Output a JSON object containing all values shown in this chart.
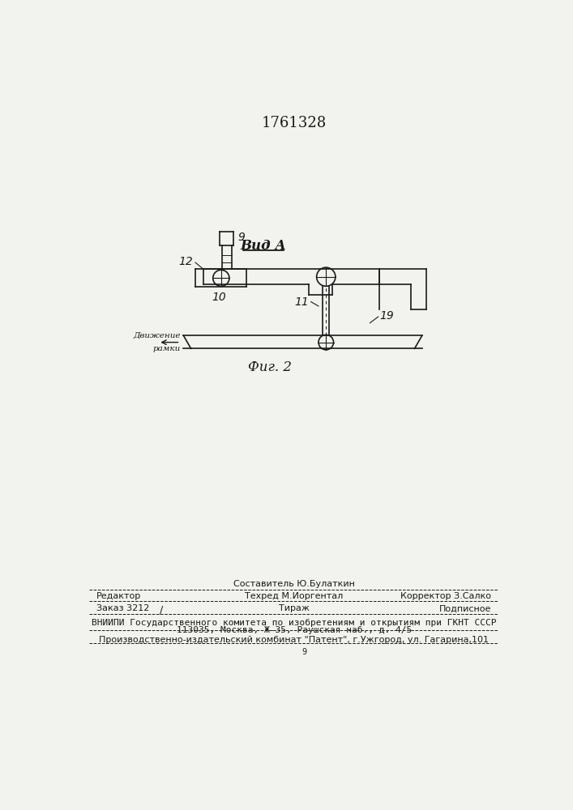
{
  "bg_color": "#f2f2ee",
  "title_text": "1761328",
  "line_color": "#1a1a1a",
  "lw": 1.2,
  "footer": {
    "line1_center": "Составитель Ю.Булаткин",
    "line2_left": "Редактор",
    "line2_center": "Техред М.Иоргентал",
    "line2_right": "Корректор З.Салко",
    "line3_left": "Заказ 3212",
    "line3_center": "Тираж",
    "line3_right": "Подписное",
    "line4": "ВНИИПИ Государственного комитета по изобретениям и открытиям при ГКНТ СССР",
    "line5": "113035, Москва, Ж-35, Раушская наб., д. 4/5",
    "line6": "Производственно-издательский комбинат \"Патент\", г.Ужгород, ул. Гагарина,101"
  }
}
